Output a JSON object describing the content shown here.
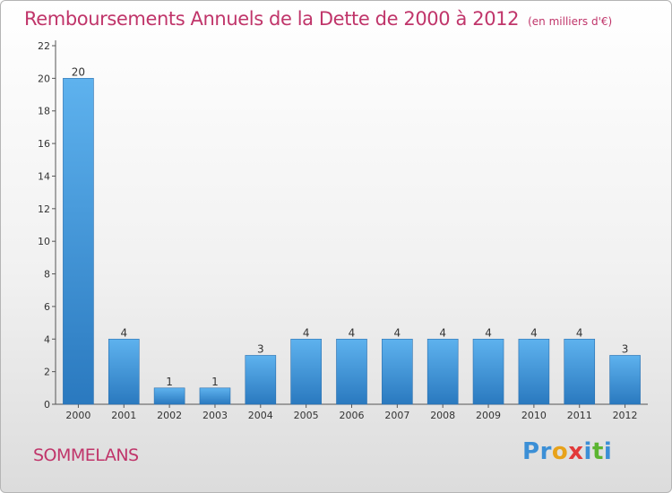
{
  "title": "Remboursements Annuels de la Dette de 2000 à 2012",
  "unit": "(en milliers d'€)",
  "commune": "SOMMELANS",
  "logo": {
    "text": "Proxiti",
    "colors": [
      "#3b8fd6",
      "#3b8fd6",
      "#e8a21a",
      "#e23a3a",
      "#3b8fd6",
      "#5cb531",
      "#3b8fd6"
    ]
  },
  "chart_data": {
    "type": "bar",
    "categories": [
      "2000",
      "2001",
      "2002",
      "2003",
      "2004",
      "2005",
      "2006",
      "2007",
      "2008",
      "2009",
      "2010",
      "2011",
      "2012"
    ],
    "values": [
      20,
      4,
      1,
      1,
      3,
      4,
      4,
      4,
      4,
      4,
      4,
      4,
      3
    ],
    "ylim": [
      0,
      22
    ],
    "yticks": [
      0,
      2,
      4,
      6,
      8,
      10,
      12,
      14,
      16,
      18,
      20,
      22
    ],
    "grid": false,
    "bar_color_top": "#5eb2ee",
    "bar_color_bottom": "#2a79bf"
  }
}
